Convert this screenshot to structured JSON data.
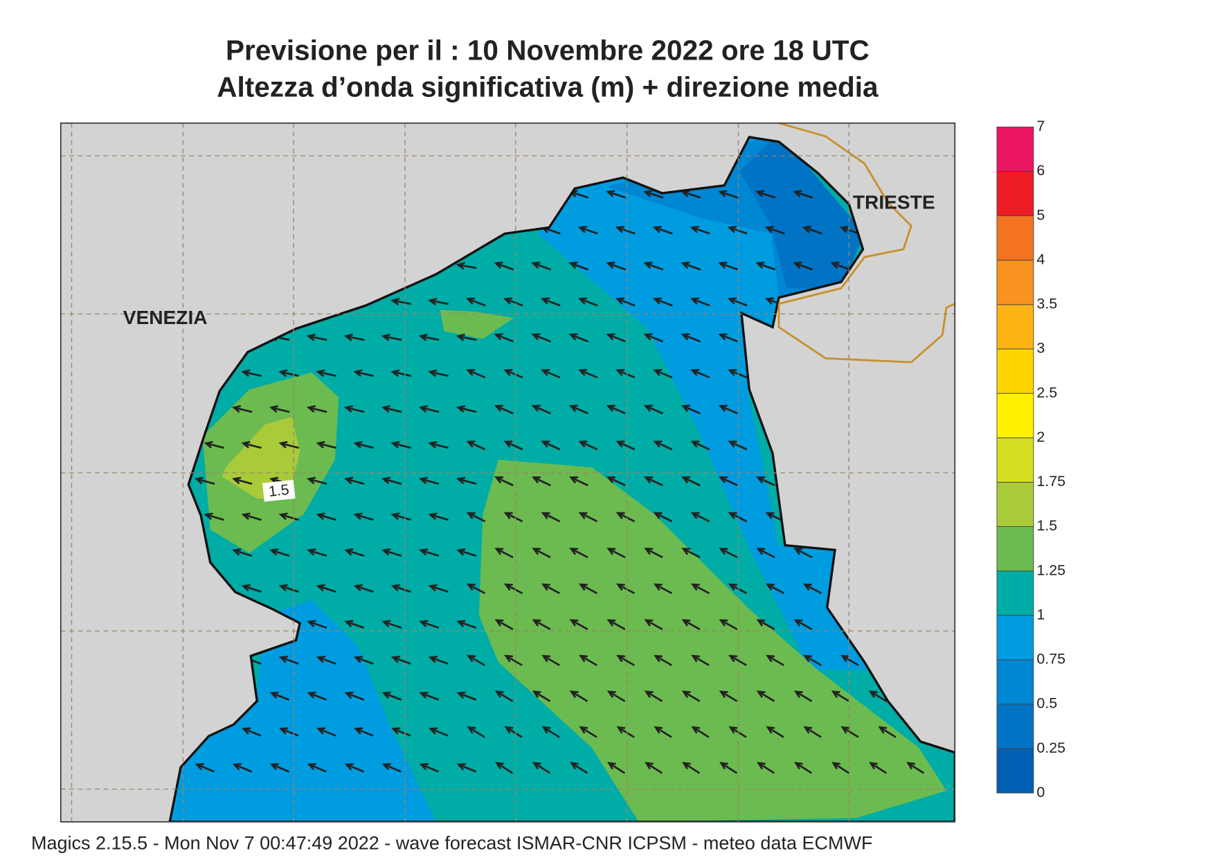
{
  "title": [
    "Previsione per il  :  10 Novembre  2022   ore 18 UTC",
    "Altezza d’onda significativa (m) + direzione media"
  ],
  "places": [
    "VENEZIA",
    "TRIESTE"
  ],
  "contour_label": "1.5",
  "colorbar": {
    "levels": [
      "0",
      "0.25",
      "0.5",
      "0.75",
      "1",
      "1.25",
      "1.5",
      "1.75",
      "2",
      "2.5",
      "3",
      "3.5",
      "4",
      "5",
      "6",
      "7"
    ],
    "colors": [
      "#005fb3",
      "#0073c4",
      "#0087d3",
      "#009ce0",
      "#00aca6",
      "#6cbb50",
      "#a9cb3a",
      "#d6df22",
      "#fff200",
      "#ffd500",
      "#fdb515",
      "#f7931e",
      "#f47321",
      "#ed1c24",
      "#ec1561"
    ]
  },
  "footer": "Magics 2.15.5 - Mon Nov  7 00:47:49 2022 - wave forecast  ISMAR-CNR  ICPSM - meteo data    ECMWF"
}
